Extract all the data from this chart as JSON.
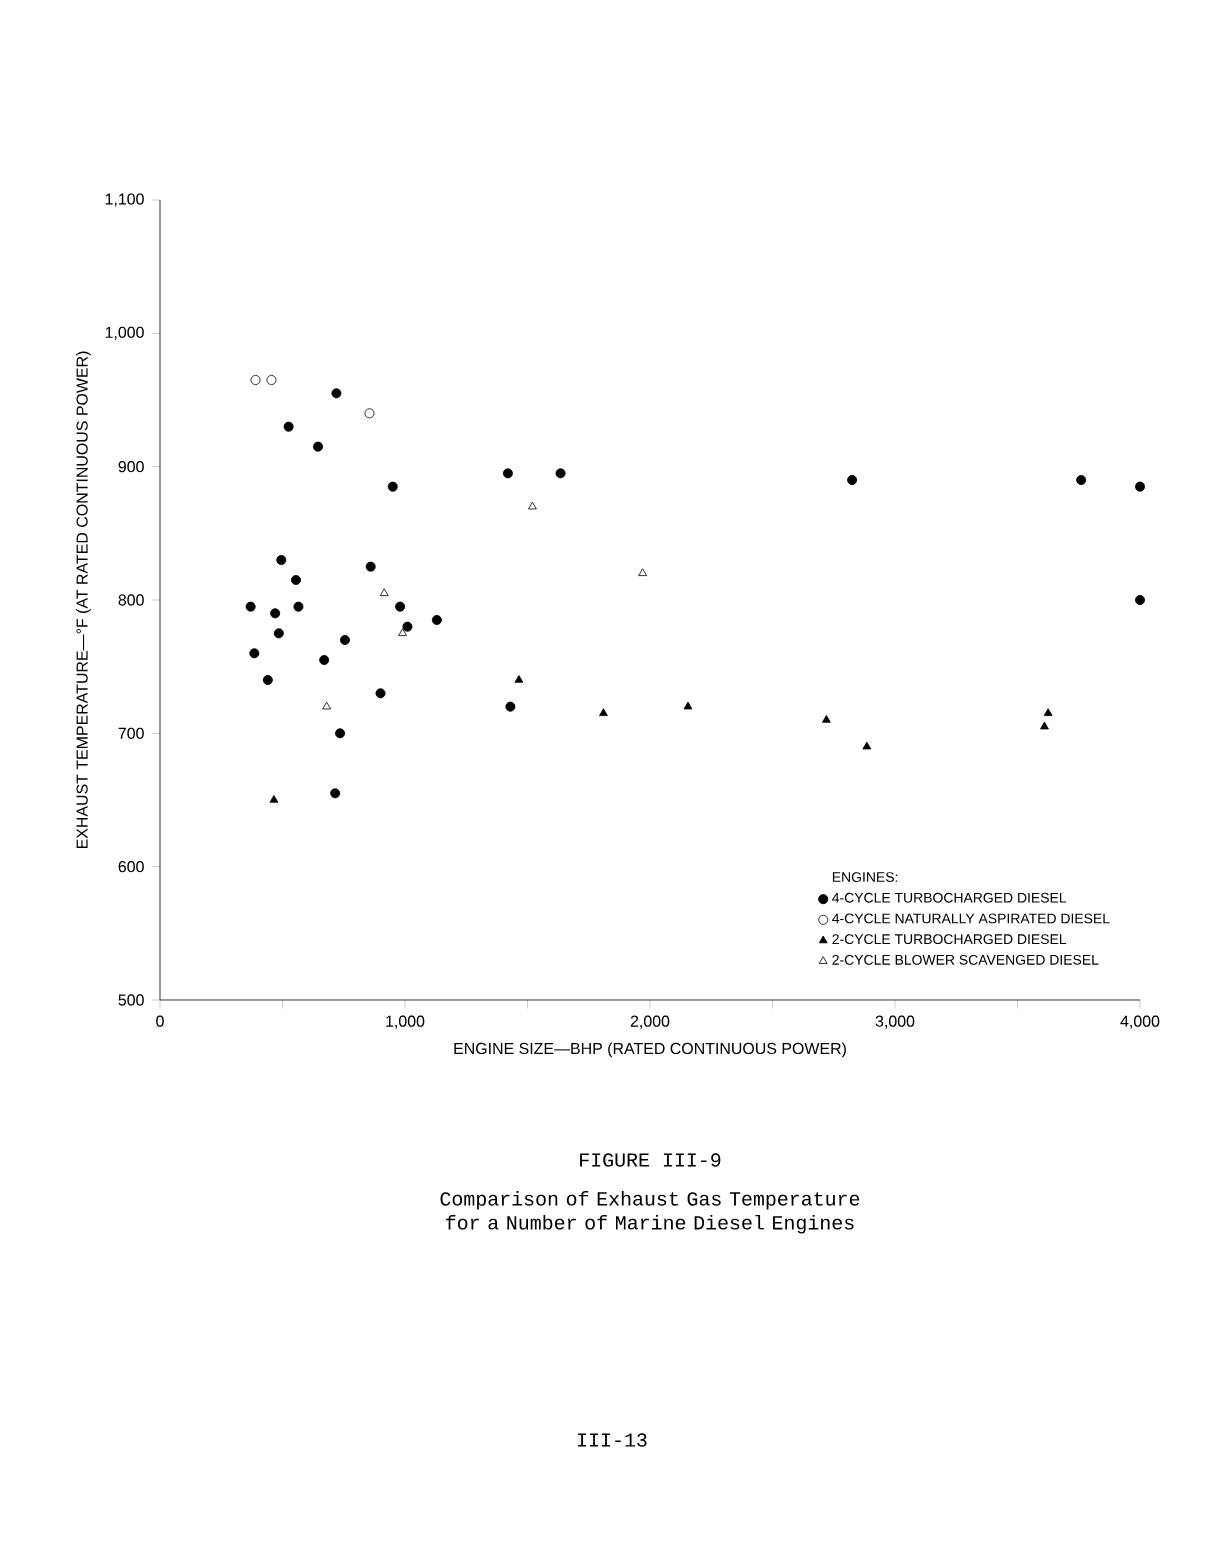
{
  "chart_data": {
    "type": "scatter",
    "title": "FIGURE III-9",
    "subtitle": "Comparison of Exhaust Gas Temperature for a Number of Marine Diesel Engines",
    "xlabel": "ENGINE SIZE—BHP (RATED CONTINUOUS POWER)",
    "ylabel": "EXHAUST TEMPERATURE—°F (AT RATED CONTINUOUS POWER)",
    "legend_title": "ENGINES:",
    "legend": "bottom right",
    "annotations": [
      "III-13"
    ],
    "xlim": [
      0,
      4000
    ],
    "ylim": [
      500,
      1100
    ],
    "xticks": [
      0,
      {
        "value": 500,
        "label": null
      },
      {
        "value": 1000,
        "label": "1,000"
      },
      {
        "value": 1500,
        "label": null
      },
      {
        "value": 2000,
        "label": "2,000"
      },
      {
        "value": 2500,
        "label": null
      },
      {
        "value": 3000,
        "label": "3,000"
      },
      {
        "value": 3500,
        "label": null
      },
      {
        "value": 4000,
        "label": "4,000"
      }
    ],
    "yticks": [
      500,
      600,
      700,
      800,
      900,
      {
        "value": 1000,
        "label": "1,000"
      },
      {
        "value": 1100,
        "label": "1,100"
      }
    ],
    "series": [
      {
        "name": "4-CYCLE TURBOCHARGED DIESEL",
        "color": "#000000",
        "marker": "circle",
        "x": [
          1130,
          950,
          980,
          1010,
          860,
          900,
          720,
          755,
          735,
          715,
          670,
          645,
          525,
          565,
          555,
          495,
          485,
          470,
          440,
          385,
          370,
          1635,
          1420,
          1430,
          2825,
          3760,
          4000,
          4000
        ],
        "values": [
          785,
          885,
          795,
          780,
          825,
          730,
          955,
          770,
          700,
          655,
          755,
          915,
          930,
          795,
          815,
          830,
          775,
          790,
          740,
          760,
          795,
          895,
          895,
          720,
          890,
          890,
          885,
          800
        ]
      },
      {
        "name": "4-CYCLE NATURALLY ASPIRATED DIESEL",
        "color": "#ffffff",
        "marker": "circle",
        "x": [
          855,
          455,
          390
        ],
        "values": [
          940,
          965,
          965
        ]
      },
      {
        "name": "2-CYCLE TURBOCHARGED DIESEL",
        "color": "#000000",
        "marker": "triangle",
        "x": [
          465,
          1465,
          1810,
          2155,
          2720,
          2885,
          3625,
          3610
        ],
        "values": [
          650,
          740,
          715,
          720,
          710,
          690,
          715,
          705
        ]
      },
      {
        "name": "2-CYCLE BLOWER SCAVENGED DIESEL",
        "color": "#ffffff",
        "marker": "triangle",
        "x": [
          915,
          990,
          680,
          1520,
          1970
        ],
        "values": [
          805,
          775,
          720,
          870,
          820
        ]
      }
    ]
  }
}
